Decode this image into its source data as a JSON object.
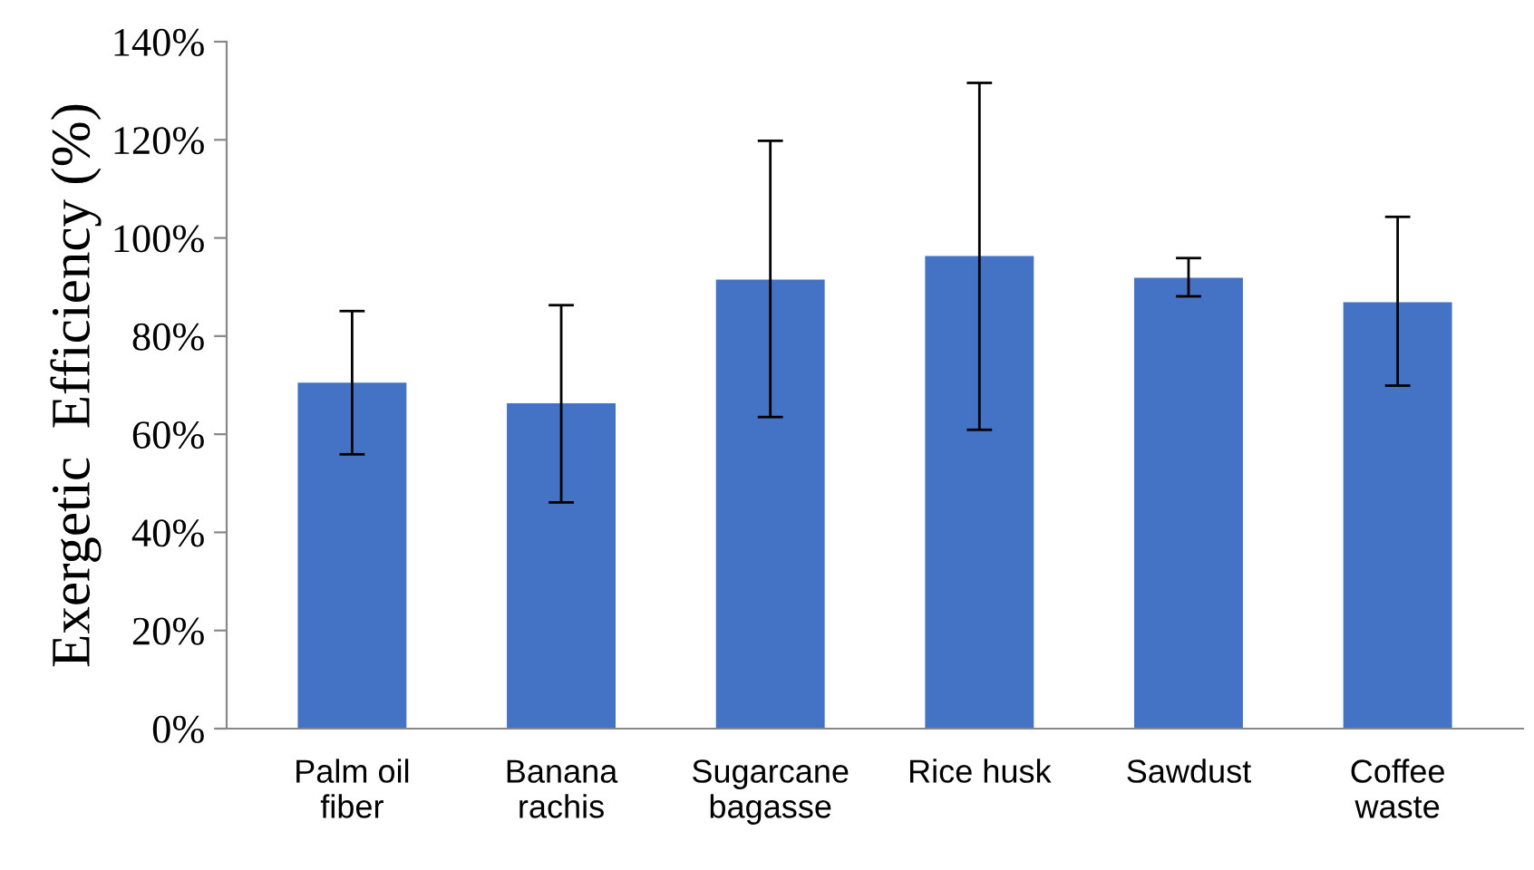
{
  "chart_data": {
    "type": "bar",
    "ylabel": "Exergetic  Efficiency (%)",
    "categories": [
      "Palm oil\nfiber",
      "Banana\nrachis",
      "Sugarcane\nbagasse",
      "Rice husk",
      "Sawdust",
      "Coffee\nwaste"
    ],
    "values": [
      70.5,
      66.3,
      91.5,
      96.3,
      91.9,
      86.9
    ],
    "errors": [
      [
        55.9,
        85.1
      ],
      [
        46.1,
        86.3
      ],
      [
        63.5,
        119.8
      ],
      [
        60.9,
        131.6
      ],
      [
        88.1,
        95.9
      ],
      [
        69.9,
        104.3
      ]
    ],
    "color": "#4472c4",
    "ylim": [
      0,
      140
    ],
    "yticks": [
      {
        "value": 0,
        "label": "0%"
      },
      {
        "value": 20,
        "label": "20%"
      },
      {
        "value": 40,
        "label": "40%"
      },
      {
        "value": 60,
        "label": "60%"
      },
      {
        "value": 80,
        "label": "80%"
      },
      {
        "value": 100,
        "label": "100%"
      },
      {
        "value": 120,
        "label": "120%"
      },
      {
        "value": 140,
        "label": "140%"
      }
    ],
    "grid": false
  }
}
